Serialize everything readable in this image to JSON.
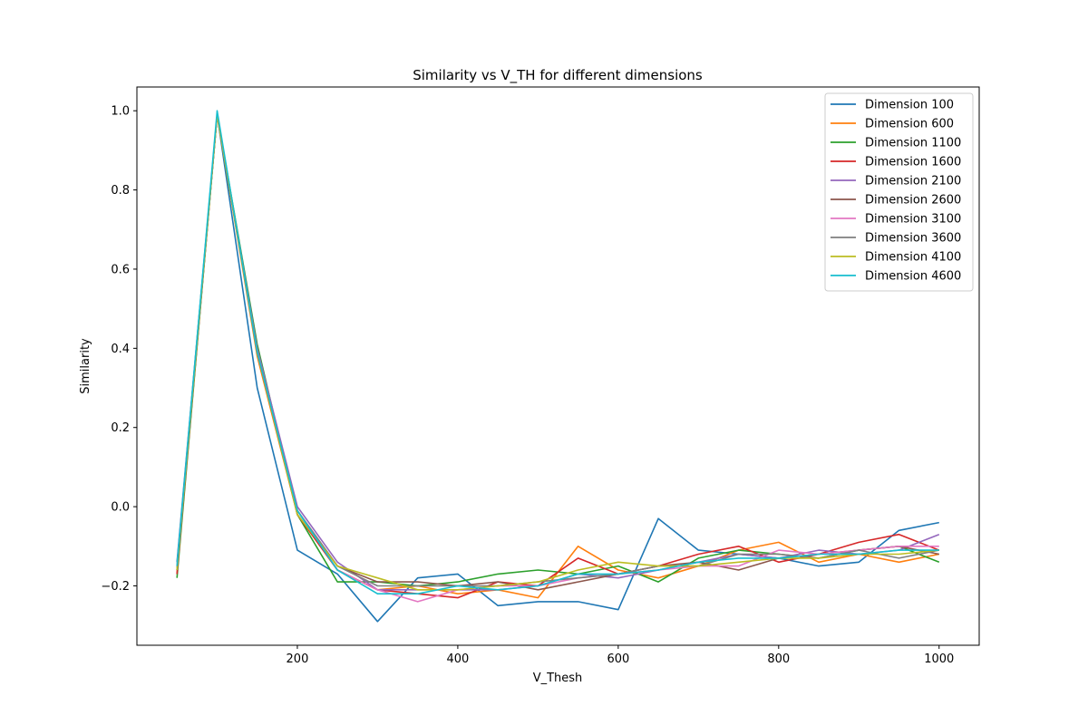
{
  "chart_data": {
    "type": "line",
    "title": "Similarity vs V_TH for different dimensions",
    "xlabel": "V_Thesh",
    "ylabel": "Similarity",
    "xlim": [
      0,
      1050
    ],
    "ylim": [
      -0.35,
      1.06
    ],
    "xticks": [
      200,
      400,
      600,
      800,
      1000
    ],
    "yticks": [
      -0.2,
      0.0,
      0.2,
      0.4,
      0.6,
      0.8,
      1.0
    ],
    "xtick_labels": [
      "200",
      "400",
      "600",
      "800",
      "1000"
    ],
    "ytick_labels": [
      "−0.2",
      "0.0",
      "0.2",
      "0.4",
      "0.6",
      "0.8",
      "1.0"
    ],
    "grid": false,
    "legend_position": "top-right",
    "x": [
      50,
      100,
      150,
      200,
      250,
      300,
      350,
      400,
      450,
      500,
      550,
      600,
      650,
      700,
      750,
      800,
      850,
      900,
      950,
      1000
    ],
    "series": [
      {
        "name": "Dimension 100",
        "color": "#1f77b4",
        "values": [
          -0.14,
          0.99,
          0.3,
          -0.11,
          -0.17,
          -0.29,
          -0.18,
          -0.17,
          -0.25,
          -0.24,
          -0.24,
          -0.26,
          -0.03,
          -0.11,
          -0.12,
          -0.13,
          -0.15,
          -0.14,
          -0.06,
          -0.04
        ]
      },
      {
        "name": "Dimension 600",
        "color": "#ff7f0e",
        "values": [
          -0.17,
          0.99,
          0.38,
          -0.02,
          -0.16,
          -0.21,
          -0.2,
          -0.22,
          -0.21,
          -0.23,
          -0.1,
          -0.16,
          -0.18,
          -0.15,
          -0.11,
          -0.09,
          -0.14,
          -0.12,
          -0.14,
          -0.12
        ]
      },
      {
        "name": "Dimension 1100",
        "color": "#2ca02c",
        "values": [
          -0.18,
          0.99,
          0.41,
          -0.02,
          -0.19,
          -0.19,
          -0.2,
          -0.19,
          -0.17,
          -0.16,
          -0.17,
          -0.15,
          -0.19,
          -0.13,
          -0.11,
          -0.12,
          -0.13,
          -0.11,
          -0.1,
          -0.14
        ]
      },
      {
        "name": "Dimension 1600",
        "color": "#d62728",
        "values": [
          -0.17,
          0.99,
          0.39,
          -0.02,
          -0.16,
          -0.21,
          -0.22,
          -0.23,
          -0.19,
          -0.2,
          -0.13,
          -0.17,
          -0.15,
          -0.12,
          -0.1,
          -0.14,
          -0.12,
          -0.09,
          -0.07,
          -0.11
        ]
      },
      {
        "name": "Dimension 2100",
        "color": "#9467bd",
        "values": [
          -0.16,
          0.99,
          0.4,
          0.0,
          -0.14,
          -0.21,
          -0.21,
          -0.21,
          -0.21,
          -0.2,
          -0.17,
          -0.18,
          -0.16,
          -0.14,
          -0.12,
          -0.13,
          -0.11,
          -0.12,
          -0.11,
          -0.07
        ]
      },
      {
        "name": "Dimension 2600",
        "color": "#8c564b",
        "values": [
          -0.16,
          0.99,
          0.39,
          -0.01,
          -0.15,
          -0.19,
          -0.19,
          -0.2,
          -0.19,
          -0.21,
          -0.19,
          -0.17,
          -0.15,
          -0.14,
          -0.16,
          -0.13,
          -0.12,
          -0.11,
          -0.1,
          -0.12
        ]
      },
      {
        "name": "Dimension 3100",
        "color": "#e377c2",
        "values": [
          -0.15,
          0.99,
          0.39,
          -0.01,
          -0.16,
          -0.21,
          -0.24,
          -0.21,
          -0.2,
          -0.2,
          -0.18,
          -0.17,
          -0.16,
          -0.15,
          -0.15,
          -0.11,
          -0.12,
          -0.11,
          -0.1,
          -0.1
        ]
      },
      {
        "name": "Dimension 3600",
        "color": "#7f7f7f",
        "values": [
          -0.16,
          0.99,
          0.39,
          -0.01,
          -0.15,
          -0.2,
          -0.2,
          -0.2,
          -0.2,
          -0.19,
          -0.18,
          -0.17,
          -0.15,
          -0.15,
          -0.12,
          -0.12,
          -0.13,
          -0.11,
          -0.13,
          -0.11
        ]
      },
      {
        "name": "Dimension 4100",
        "color": "#bcbd22",
        "values": [
          -0.16,
          0.99,
          0.39,
          -0.02,
          -0.15,
          -0.18,
          -0.21,
          -0.21,
          -0.2,
          -0.19,
          -0.16,
          -0.14,
          -0.15,
          -0.15,
          -0.14,
          -0.13,
          -0.13,
          -0.12,
          -0.12,
          -0.11
        ]
      },
      {
        "name": "Dimension 4600",
        "color": "#17becf",
        "values": [
          -0.15,
          1.0,
          0.39,
          -0.01,
          -0.16,
          -0.22,
          -0.22,
          -0.2,
          -0.21,
          -0.2,
          -0.17,
          -0.17,
          -0.16,
          -0.14,
          -0.13,
          -0.13,
          -0.12,
          -0.12,
          -0.11,
          -0.11
        ]
      }
    ]
  }
}
